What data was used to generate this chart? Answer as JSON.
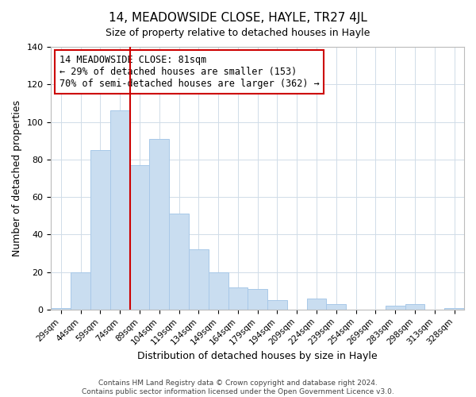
{
  "title": "14, MEADOWSIDE CLOSE, HAYLE, TR27 4JL",
  "subtitle": "Size of property relative to detached houses in Hayle",
  "xlabel": "Distribution of detached houses by size in Hayle",
  "ylabel": "Number of detached properties",
  "categories": [
    "29sqm",
    "44sqm",
    "59sqm",
    "74sqm",
    "89sqm",
    "104sqm",
    "119sqm",
    "134sqm",
    "149sqm",
    "164sqm",
    "179sqm",
    "194sqm",
    "209sqm",
    "224sqm",
    "239sqm",
    "254sqm",
    "269sqm",
    "283sqm",
    "298sqm",
    "313sqm",
    "328sqm"
  ],
  "values": [
    1,
    20,
    85,
    106,
    77,
    91,
    51,
    32,
    20,
    12,
    11,
    5,
    0,
    6,
    3,
    0,
    0,
    2,
    3,
    0,
    1
  ],
  "bar_color": "#c9ddf0",
  "bar_edge_color": "#a8c8e8",
  "vline_x": 3.5,
  "vline_color": "#cc0000",
  "annotation_title": "14 MEADOWSIDE CLOSE: 81sqm",
  "annotation_line1": "← 29% of detached houses are smaller (153)",
  "annotation_line2": "70% of semi-detached houses are larger (362) →",
  "annotation_box_color": "#ffffff",
  "annotation_box_edge_color": "#cc0000",
  "ylim": [
    0,
    140
  ],
  "yticks": [
    0,
    20,
    40,
    60,
    80,
    100,
    120,
    140
  ],
  "footer1": "Contains HM Land Registry data © Crown copyright and database right 2024.",
  "footer2": "Contains public sector information licensed under the Open Government Licence v3.0.",
  "background_color": "#ffffff",
  "grid_color": "#d0dce8"
}
